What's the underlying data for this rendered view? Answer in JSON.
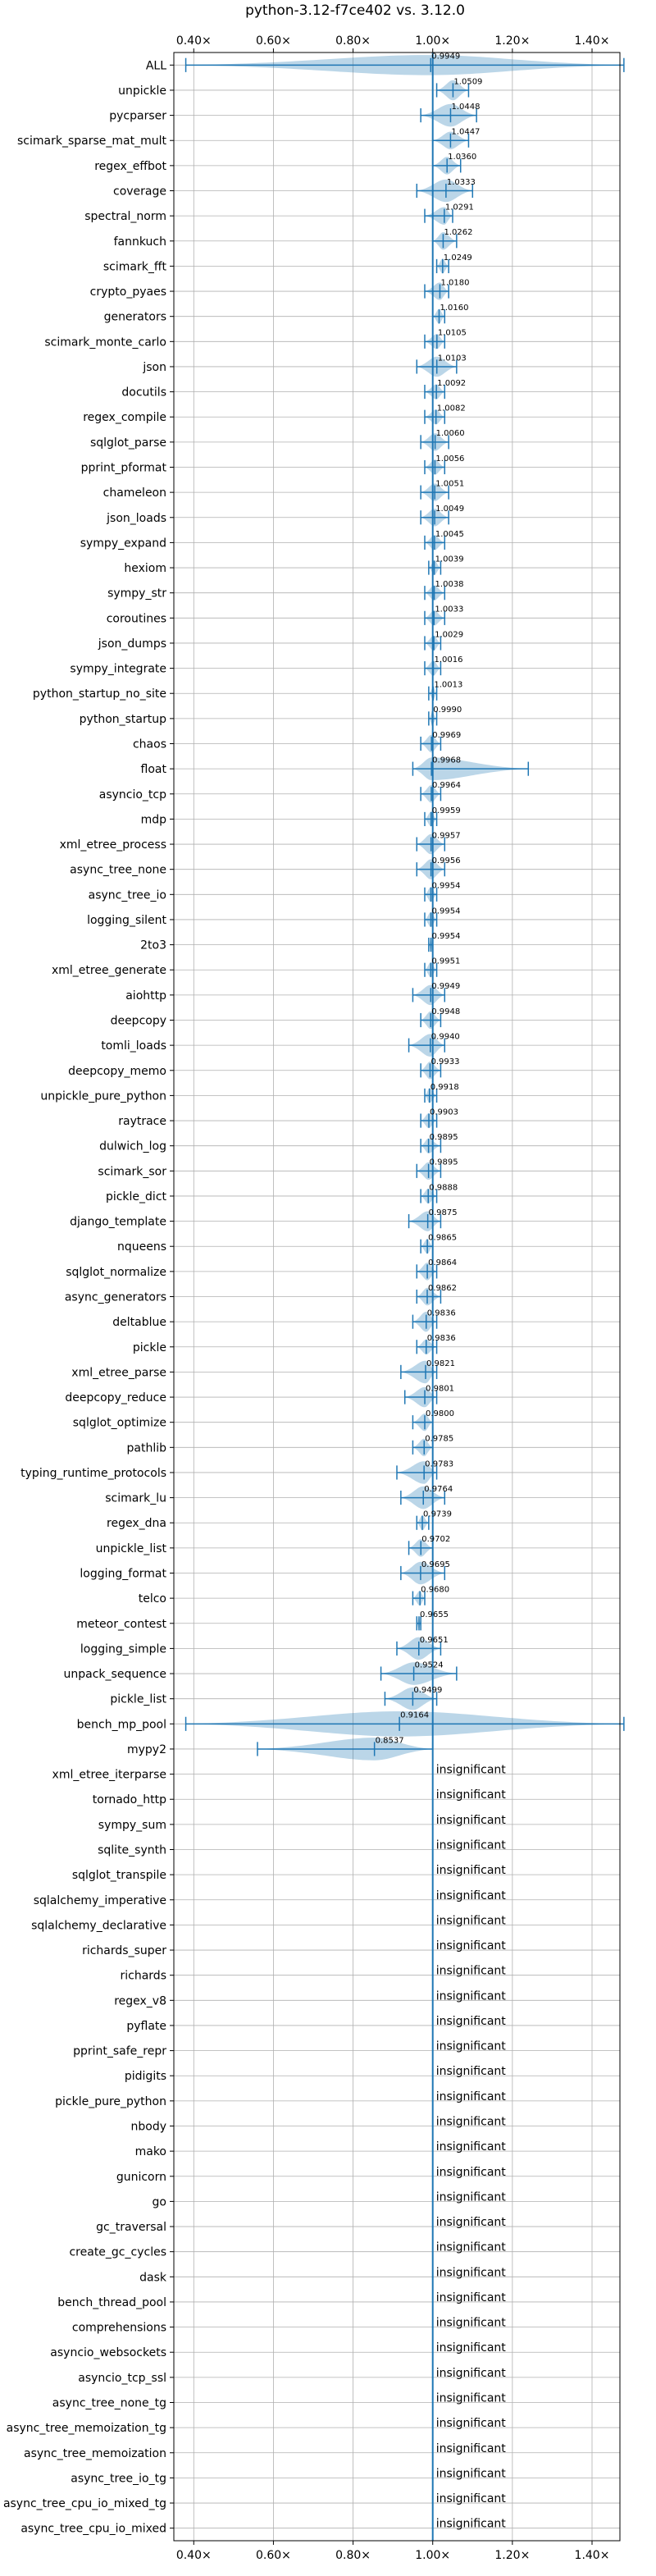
{
  "chart_data": {
    "type": "violin",
    "title": "python-3.12-f7ce402 vs. 3.12.0",
    "xlim": [
      0.35,
      1.47
    ],
    "x_ticks": [
      0.4,
      0.6,
      0.8,
      1.0,
      1.2,
      1.4
    ],
    "x_tick_labels": [
      "0.40×",
      "0.60×",
      "0.80×",
      "1.00×",
      "1.20×",
      "1.40×"
    ],
    "reference_line": 1.0,
    "grid": true,
    "colors": {
      "violin": "#1f77b4",
      "line": "#1f77b4",
      "grid": "#b0b0b0"
    },
    "benchmarks": [
      {
        "name": "ALL",
        "label": "0.9949",
        "center": 0.9949,
        "lo": 0.38,
        "hi": 1.48,
        "width": 0.4
      },
      {
        "name": "unpickle",
        "label": "1.0509",
        "center": 1.0509,
        "lo": 1.01,
        "hi": 1.09,
        "width": 0.4
      },
      {
        "name": "pycparser",
        "label": "1.0448",
        "center": 1.0448,
        "lo": 0.97,
        "hi": 1.11,
        "width": 0.45
      },
      {
        "name": "scimark_sparse_mat_mult",
        "label": "1.0447",
        "center": 1.0447,
        "lo": 1.0,
        "hi": 1.09,
        "width": 0.35
      },
      {
        "name": "regex_effbot",
        "label": "1.0360",
        "center": 1.036,
        "lo": 1.0,
        "hi": 1.07,
        "width": 0.35
      },
      {
        "name": "coverage",
        "label": "1.0333",
        "center": 1.0333,
        "lo": 0.96,
        "hi": 1.1,
        "width": 0.45
      },
      {
        "name": "spectral_norm",
        "label": "1.0291",
        "center": 1.0291,
        "lo": 0.98,
        "hi": 1.05,
        "width": 0.35
      },
      {
        "name": "fannkuch",
        "label": "1.0262",
        "center": 1.0262,
        "lo": 1.0,
        "hi": 1.06,
        "width": 0.35
      },
      {
        "name": "scimark_fft",
        "label": "1.0249",
        "center": 1.0249,
        "lo": 1.01,
        "hi": 1.04,
        "width": 0.3
      },
      {
        "name": "crypto_pyaes",
        "label": "1.0180",
        "center": 1.018,
        "lo": 0.98,
        "hi": 1.04,
        "width": 0.35
      },
      {
        "name": "generators",
        "label": "1.0160",
        "center": 1.016,
        "lo": 1.0,
        "hi": 1.03,
        "width": 0.3
      },
      {
        "name": "scimark_monte_carlo",
        "label": "1.0105",
        "center": 1.0105,
        "lo": 0.98,
        "hi": 1.03,
        "width": 0.3
      },
      {
        "name": "json",
        "label": "1.0103",
        "center": 1.0103,
        "lo": 0.96,
        "hi": 1.06,
        "width": 0.4
      },
      {
        "name": "docutils",
        "label": "1.0092",
        "center": 1.0092,
        "lo": 0.98,
        "hi": 1.03,
        "width": 0.3
      },
      {
        "name": "regex_compile",
        "label": "1.0082",
        "center": 1.0082,
        "lo": 0.98,
        "hi": 1.03,
        "width": 0.3
      },
      {
        "name": "sqlglot_parse",
        "label": "1.0060",
        "center": 1.006,
        "lo": 0.97,
        "hi": 1.04,
        "width": 0.35
      },
      {
        "name": "pprint_pformat",
        "label": "1.0056",
        "center": 1.0056,
        "lo": 0.98,
        "hi": 1.03,
        "width": 0.3
      },
      {
        "name": "chameleon",
        "label": "1.0051",
        "center": 1.0051,
        "lo": 0.97,
        "hi": 1.04,
        "width": 0.35
      },
      {
        "name": "json_loads",
        "label": "1.0049",
        "center": 1.0049,
        "lo": 0.97,
        "hi": 1.04,
        "width": 0.35
      },
      {
        "name": "sympy_expand",
        "label": "1.0045",
        "center": 1.0045,
        "lo": 0.98,
        "hi": 1.03,
        "width": 0.3
      },
      {
        "name": "hexiom",
        "label": "1.0039",
        "center": 1.0039,
        "lo": 0.99,
        "hi": 1.02,
        "width": 0.3
      },
      {
        "name": "sympy_str",
        "label": "1.0038",
        "center": 1.0038,
        "lo": 0.98,
        "hi": 1.03,
        "width": 0.3
      },
      {
        "name": "coroutines",
        "label": "1.0033",
        "center": 1.0033,
        "lo": 0.98,
        "hi": 1.03,
        "width": 0.3
      },
      {
        "name": "json_dumps",
        "label": "1.0029",
        "center": 1.0029,
        "lo": 0.98,
        "hi": 1.02,
        "width": 0.3
      },
      {
        "name": "sympy_integrate",
        "label": "1.0016",
        "center": 1.0016,
        "lo": 0.98,
        "hi": 1.02,
        "width": 0.3
      },
      {
        "name": "python_startup_no_site",
        "label": "1.0013",
        "center": 1.0013,
        "lo": 0.99,
        "hi": 1.01,
        "width": 0.25
      },
      {
        "name": "python_startup",
        "label": "0.9990",
        "center": 0.999,
        "lo": 0.99,
        "hi": 1.01,
        "width": 0.25
      },
      {
        "name": "chaos",
        "label": "0.9969",
        "center": 0.9969,
        "lo": 0.97,
        "hi": 1.02,
        "width": 0.35
      },
      {
        "name": "float",
        "label": "0.9968",
        "center": 0.9968,
        "lo": 0.95,
        "hi": 1.24,
        "width": 0.45
      },
      {
        "name": "asyncio_tcp",
        "label": "0.9964",
        "center": 0.9964,
        "lo": 0.97,
        "hi": 1.02,
        "width": 0.35
      },
      {
        "name": "mdp",
        "label": "0.9959",
        "center": 0.9959,
        "lo": 0.98,
        "hi": 1.01,
        "width": 0.3
      },
      {
        "name": "xml_etree_process",
        "label": "0.9957",
        "center": 0.9957,
        "lo": 0.96,
        "hi": 1.03,
        "width": 0.4
      },
      {
        "name": "async_tree_none",
        "label": "0.9956",
        "center": 0.9956,
        "lo": 0.96,
        "hi": 1.03,
        "width": 0.4
      },
      {
        "name": "async_tree_io",
        "label": "0.9954",
        "center": 0.9954,
        "lo": 0.98,
        "hi": 1.01,
        "width": 0.3
      },
      {
        "name": "logging_silent",
        "label": "0.9954",
        "center": 0.9954,
        "lo": 0.98,
        "hi": 1.01,
        "width": 0.3
      },
      {
        "name": "2to3",
        "label": "0.9954",
        "center": 0.9954,
        "lo": 0.99,
        "hi": 1.0,
        "width": 0.25
      },
      {
        "name": "xml_etree_generate",
        "label": "0.9951",
        "center": 0.9951,
        "lo": 0.98,
        "hi": 1.01,
        "width": 0.3
      },
      {
        "name": "aiohttp",
        "label": "0.9949",
        "center": 0.9949,
        "lo": 0.95,
        "hi": 1.03,
        "width": 0.4
      },
      {
        "name": "deepcopy",
        "label": "0.9948",
        "center": 0.9948,
        "lo": 0.97,
        "hi": 1.02,
        "width": 0.35
      },
      {
        "name": "tomli_loads",
        "label": "0.9940",
        "center": 0.994,
        "lo": 0.94,
        "hi": 1.03,
        "width": 0.45
      },
      {
        "name": "deepcopy_memo",
        "label": "0.9933",
        "center": 0.9933,
        "lo": 0.97,
        "hi": 1.02,
        "width": 0.35
      },
      {
        "name": "unpickle_pure_python",
        "label": "0.9918",
        "center": 0.9918,
        "lo": 0.98,
        "hi": 1.01,
        "width": 0.3
      },
      {
        "name": "raytrace",
        "label": "0.9903",
        "center": 0.9903,
        "lo": 0.97,
        "hi": 1.01,
        "width": 0.3
      },
      {
        "name": "dulwich_log",
        "label": "0.9895",
        "center": 0.9895,
        "lo": 0.97,
        "hi": 1.02,
        "width": 0.3
      },
      {
        "name": "scimark_sor",
        "label": "0.9895",
        "center": 0.9895,
        "lo": 0.96,
        "hi": 1.02,
        "width": 0.35
      },
      {
        "name": "pickle_dict",
        "label": "0.9888",
        "center": 0.9888,
        "lo": 0.97,
        "hi": 1.01,
        "width": 0.3
      },
      {
        "name": "django_template",
        "label": "0.9875",
        "center": 0.9875,
        "lo": 0.94,
        "hi": 1.02,
        "width": 0.4
      },
      {
        "name": "nqueens",
        "label": "0.9865",
        "center": 0.9865,
        "lo": 0.97,
        "hi": 1.0,
        "width": 0.3
      },
      {
        "name": "sqlglot_normalize",
        "label": "0.9864",
        "center": 0.9864,
        "lo": 0.96,
        "hi": 1.01,
        "width": 0.35
      },
      {
        "name": "async_generators",
        "label": "0.9862",
        "center": 0.9862,
        "lo": 0.96,
        "hi": 1.02,
        "width": 0.35
      },
      {
        "name": "deltablue",
        "label": "0.9836",
        "center": 0.9836,
        "lo": 0.95,
        "hi": 1.01,
        "width": 0.4
      },
      {
        "name": "pickle",
        "label": "0.9836",
        "center": 0.9836,
        "lo": 0.96,
        "hi": 1.01,
        "width": 0.3
      },
      {
        "name": "xml_etree_parse",
        "label": "0.9821",
        "center": 0.9821,
        "lo": 0.92,
        "hi": 1.01,
        "width": 0.45
      },
      {
        "name": "deepcopy_reduce",
        "label": "0.9801",
        "center": 0.9801,
        "lo": 0.93,
        "hi": 1.01,
        "width": 0.4
      },
      {
        "name": "sqlglot_optimize",
        "label": "0.9800",
        "center": 0.98,
        "lo": 0.95,
        "hi": 1.0,
        "width": 0.35
      },
      {
        "name": "pathlib",
        "label": "0.9785",
        "center": 0.9785,
        "lo": 0.95,
        "hi": 1.0,
        "width": 0.35
      },
      {
        "name": "typing_runtime_protocols",
        "label": "0.9783",
        "center": 0.9783,
        "lo": 0.91,
        "hi": 1.01,
        "width": 0.45
      },
      {
        "name": "scimark_lu",
        "label": "0.9764",
        "center": 0.9764,
        "lo": 0.92,
        "hi": 1.03,
        "width": 0.45
      },
      {
        "name": "regex_dna",
        "label": "0.9739",
        "center": 0.9739,
        "lo": 0.96,
        "hi": 0.99,
        "width": 0.3
      },
      {
        "name": "unpickle_list",
        "label": "0.9702",
        "center": 0.9702,
        "lo": 0.94,
        "hi": 1.0,
        "width": 0.35
      },
      {
        "name": "logging_format",
        "label": "0.9695",
        "center": 0.9695,
        "lo": 0.92,
        "hi": 1.03,
        "width": 0.45
      },
      {
        "name": "telco",
        "label": "0.9680",
        "center": 0.968,
        "lo": 0.95,
        "hi": 0.98,
        "width": 0.3
      },
      {
        "name": "meteor_contest",
        "label": "0.9655",
        "center": 0.9655,
        "lo": 0.96,
        "hi": 0.97,
        "width": 0.25
      },
      {
        "name": "logging_simple",
        "label": "0.9651",
        "center": 0.9651,
        "lo": 0.91,
        "hi": 1.02,
        "width": 0.45
      },
      {
        "name": "unpack_sequence",
        "label": "0.9524",
        "center": 0.9524,
        "lo": 0.87,
        "hi": 1.06,
        "width": 0.45
      },
      {
        "name": "pickle_list",
        "label": "0.9499",
        "center": 0.9499,
        "lo": 0.88,
        "hi": 1.01,
        "width": 0.45
      },
      {
        "name": "bench_mp_pool",
        "label": "0.9164",
        "center": 0.9164,
        "lo": 0.38,
        "hi": 1.48,
        "width": 0.5
      },
      {
        "name": "mypy2",
        "label": "0.8537",
        "center": 0.8537,
        "lo": 0.56,
        "hi": 1.0,
        "width": 0.45
      },
      {
        "name": "xml_etree_iterparse",
        "label": "insignificant"
      },
      {
        "name": "tornado_http",
        "label": "insignificant"
      },
      {
        "name": "sympy_sum",
        "label": "insignificant"
      },
      {
        "name": "sqlite_synth",
        "label": "insignificant"
      },
      {
        "name": "sqlglot_transpile",
        "label": "insignificant"
      },
      {
        "name": "sqlalchemy_imperative",
        "label": "insignificant"
      },
      {
        "name": "sqlalchemy_declarative",
        "label": "insignificant"
      },
      {
        "name": "richards_super",
        "label": "insignificant"
      },
      {
        "name": "richards",
        "label": "insignificant"
      },
      {
        "name": "regex_v8",
        "label": "insignificant"
      },
      {
        "name": "pyflate",
        "label": "insignificant"
      },
      {
        "name": "pprint_safe_repr",
        "label": "insignificant"
      },
      {
        "name": "pidigits",
        "label": "insignificant"
      },
      {
        "name": "pickle_pure_python",
        "label": "insignificant"
      },
      {
        "name": "nbody",
        "label": "insignificant"
      },
      {
        "name": "mako",
        "label": "insignificant"
      },
      {
        "name": "gunicorn",
        "label": "insignificant"
      },
      {
        "name": "go",
        "label": "insignificant"
      },
      {
        "name": "gc_traversal",
        "label": "insignificant"
      },
      {
        "name": "create_gc_cycles",
        "label": "insignificant"
      },
      {
        "name": "dask",
        "label": "insignificant"
      },
      {
        "name": "bench_thread_pool",
        "label": "insignificant"
      },
      {
        "name": "comprehensions",
        "label": "insignificant"
      },
      {
        "name": "asyncio_websockets",
        "label": "insignificant"
      },
      {
        "name": "asyncio_tcp_ssl",
        "label": "insignificant"
      },
      {
        "name": "async_tree_none_tg",
        "label": "insignificant"
      },
      {
        "name": "async_tree_memoization_tg",
        "label": "insignificant"
      },
      {
        "name": "async_tree_memoization",
        "label": "insignificant"
      },
      {
        "name": "async_tree_io_tg",
        "label": "insignificant"
      },
      {
        "name": "async_tree_cpu_io_mixed_tg",
        "label": "insignificant"
      },
      {
        "name": "async_tree_cpu_io_mixed",
        "label": "insignificant"
      }
    ]
  }
}
